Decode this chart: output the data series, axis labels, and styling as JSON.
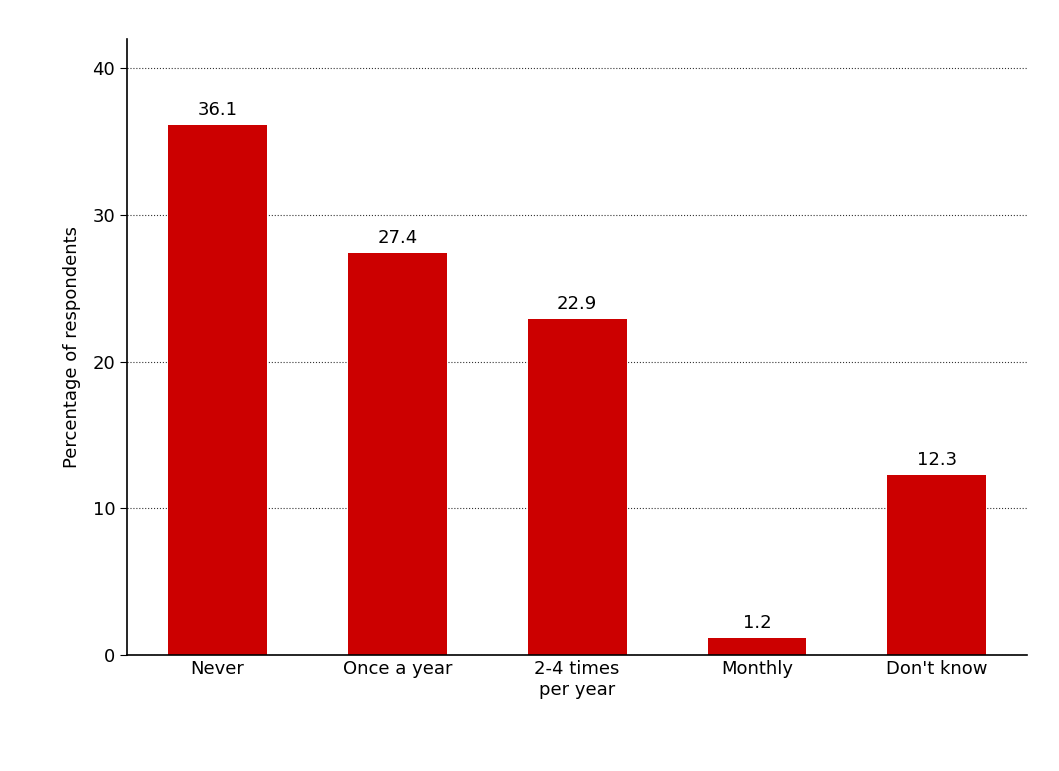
{
  "categories": [
    "Never",
    "Once a year",
    "2-4 times\nper year",
    "Monthly",
    "Don't know"
  ],
  "values": [
    36.1,
    27.4,
    22.9,
    1.2,
    12.3
  ],
  "bar_color": "#cc0000",
  "ylabel": "Percentage of respondents",
  "ylim": [
    0,
    42
  ],
  "yticks": [
    0,
    10,
    20,
    30,
    40
  ],
  "background_color": "#ffffff",
  "bar_width": 0.55,
  "label_fontsize": 13,
  "tick_fontsize": 13,
  "ylabel_fontsize": 13
}
